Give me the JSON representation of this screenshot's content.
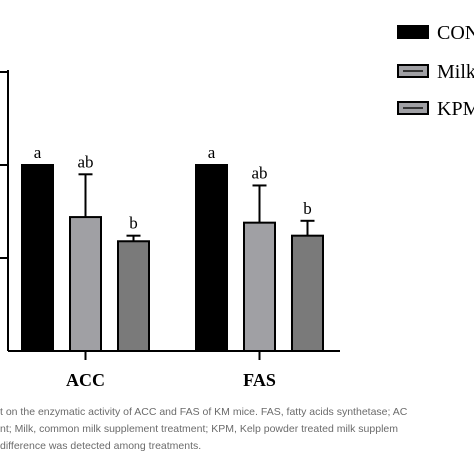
{
  "chart_data": {
    "type": "bar",
    "categories": [
      "ACC",
      "FAS"
    ],
    "ylim": [
      0,
      1.5
    ],
    "series": [
      {
        "name": "CON",
        "color": "#000000",
        "values": [
          1.0,
          1.0
        ],
        "errors": [
          0.0,
          0.0
        ],
        "labels": [
          "a",
          "a"
        ]
      },
      {
        "name": "Milk",
        "color": "#a0a0a4",
        "values": [
          0.72,
          0.69
        ],
        "errors": [
          0.23,
          0.2
        ],
        "labels": [
          "ab",
          "ab"
        ]
      },
      {
        "name": "KPM",
        "color": "#7a7a7a",
        "values": [
          0.59,
          0.62
        ],
        "errors": [
          0.03,
          0.08
        ],
        "labels": [
          "b",
          "b"
        ]
      }
    ],
    "legend_position": "top-right",
    "legend_labels": [
      "CON",
      "Milk",
      "KPM"
    ]
  },
  "caption": {
    "lines": [
      "t on the enzymatic activity of ACC and FAS of KM mice. FAS, fatty acids synthetase; AC",
      "nt; Milk, common milk supplement treatment; KPM, Kelp powder treated milk supplem",
      "difference was detected among treatments."
    ]
  }
}
